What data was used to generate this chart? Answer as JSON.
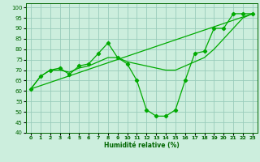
{
  "xlabel": "Humidité relative (%)",
  "background_color": "#cceedd",
  "grid_color": "#99ccbb",
  "line_color": "#00aa00",
  "xlim": [
    -0.5,
    23.5
  ],
  "ylim": [
    40,
    102
  ],
  "xticks": [
    0,
    1,
    2,
    3,
    4,
    5,
    6,
    7,
    8,
    9,
    10,
    11,
    12,
    13,
    14,
    15,
    16,
    17,
    18,
    19,
    20,
    21,
    22,
    23
  ],
  "yticks": [
    40,
    45,
    50,
    55,
    60,
    65,
    70,
    75,
    80,
    85,
    90,
    95,
    100
  ],
  "line_dip_x": [
    0,
    1,
    2,
    3,
    4,
    5,
    6,
    7,
    8,
    9,
    10,
    11,
    12,
    13,
    14,
    15,
    16,
    17,
    18,
    19,
    20,
    21,
    22,
    23
  ],
  "line_dip_y": [
    61,
    67,
    70,
    71,
    68,
    72,
    73,
    78,
    83,
    76,
    73,
    65,
    51,
    48,
    48,
    51,
    65,
    78,
    79,
    90,
    90,
    97,
    97,
    97
  ],
  "line_smooth_x": [
    0,
    1,
    2,
    3,
    4,
    5,
    6,
    7,
    8,
    9,
    10,
    11,
    12,
    13,
    14,
    15,
    16,
    17,
    18,
    19,
    20,
    21,
    22,
    23
  ],
  "line_smooth_y": [
    61,
    67,
    70,
    70,
    69,
    71,
    72,
    74,
    76,
    76,
    74,
    73,
    72,
    71,
    70,
    70,
    72,
    74,
    76,
    80,
    85,
    90,
    95,
    97
  ],
  "line_trend_x": [
    0,
    23
  ],
  "line_trend_y": [
    61,
    97
  ]
}
